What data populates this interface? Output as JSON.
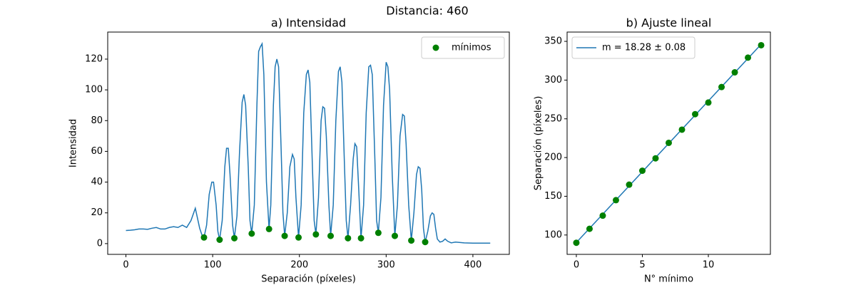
{
  "suptitle": "Distancia: 460",
  "chart_data": [
    {
      "type": "line",
      "title": "a) Intensidad",
      "xlabel": "Separación (píxeles)",
      "ylabel": "Intensidad",
      "xlim": [
        -21,
        442
      ],
      "ylim": [
        -7,
        137.6
      ],
      "xticks": [
        0,
        100,
        200,
        300,
        400
      ],
      "yticks": [
        0,
        20,
        40,
        60,
        80,
        100,
        120
      ],
      "legend": "upper right",
      "series": [
        {
          "type": "line",
          "color": "#1f77b4",
          "x": [
            0,
            5,
            10,
            15,
            20,
            25,
            30,
            35,
            40,
            45,
            50,
            55,
            60,
            65,
            70,
            75,
            80,
            85,
            88,
            90,
            93,
            96,
            99,
            101,
            104,
            106,
            108,
            111,
            114,
            116,
            118,
            120,
            123,
            125,
            128,
            131,
            134,
            136,
            138,
            141,
            143,
            145,
            148,
            151,
            153,
            155,
            157,
            159,
            162,
            165,
            167,
            170,
            172,
            174,
            176,
            179,
            181,
            183,
            186,
            189,
            192,
            194,
            196,
            199,
            202,
            205,
            208,
            210,
            212,
            215,
            217,
            219,
            222,
            225,
            227,
            229,
            231,
            234,
            236,
            239,
            242,
            245,
            247,
            249,
            252,
            254,
            256,
            259,
            262,
            264,
            266,
            268,
            271,
            274,
            277,
            280,
            282,
            284,
            287,
            289,
            291,
            294,
            297,
            300,
            302,
            304,
            307,
            310,
            313,
            316,
            319,
            321,
            323,
            326,
            329,
            332,
            335,
            337,
            339,
            341,
            343,
            345,
            348,
            351,
            353,
            355,
            357,
            359,
            362,
            365,
            368,
            371,
            375,
            380,
            390,
            400,
            410,
            420
          ],
          "values": [
            8.5,
            8.7,
            9,
            9.5,
            9.5,
            9.3,
            10,
            10.5,
            9.5,
            9.5,
            10.5,
            11,
            10.5,
            12,
            10.5,
            15,
            23,
            10,
            5,
            4,
            12,
            32,
            40,
            40,
            25,
            8,
            2.5,
            15,
            50,
            62,
            62,
            45,
            12,
            3.5,
            18,
            60,
            92,
            97,
            90,
            50,
            15,
            6.5,
            25,
            90,
            125,
            128,
            130,
            110,
            40,
            9.5,
            25,
            90,
            115,
            120,
            115,
            60,
            20,
            5,
            20,
            50,
            58,
            55,
            30,
            4,
            25,
            85,
            110,
            113,
            105,
            50,
            15,
            6,
            30,
            80,
            89,
            88,
            70,
            25,
            5,
            25,
            80,
            112,
            115,
            105,
            50,
            15,
            3.5,
            25,
            55,
            65,
            63,
            40,
            3.5,
            25,
            85,
            115,
            116,
            110,
            55,
            15,
            7,
            30,
            90,
            118,
            115,
            100,
            45,
            5,
            25,
            70,
            84,
            83,
            65,
            25,
            2,
            20,
            45,
            50,
            49,
            35,
            10,
            1,
            8,
            18,
            20,
            19,
            10,
            3,
            1,
            1.5,
            3,
            1.5,
            0.5,
            1,
            0.5,
            0.3,
            0.3,
            0.3
          ]
        },
        {
          "type": "scatter",
          "name": "mínimos",
          "color": "green",
          "x": [
            90,
            108,
            125,
            145,
            165,
            183,
            199,
            219,
            236,
            256,
            271,
            291,
            310,
            329,
            345
          ],
          "values": [
            4,
            2.5,
            3.5,
            6.5,
            9.5,
            5,
            4,
            6,
            5,
            3.5,
            3.5,
            7,
            5,
            2,
            1
          ]
        }
      ]
    },
    {
      "type": "line",
      "title": "b) Ajuste lineal",
      "xlabel": "N° mínimo",
      "ylabel": "Separación (píxeles)",
      "xlim": [
        -0.7,
        14.7
      ],
      "ylim": [
        75,
        362
      ],
      "xticks": [
        0,
        5,
        10
      ],
      "yticks": [
        100,
        150,
        200,
        250,
        300,
        350
      ],
      "legend": "upper left",
      "series": [
        {
          "type": "line",
          "name": "m = 18.28 ± 0.08",
          "color": "#1f77b4",
          "x": [
            0,
            14
          ],
          "values": [
            90.3,
            346.2
          ]
        },
        {
          "type": "scatter",
          "color": "green",
          "x": [
            0,
            1,
            2,
            3,
            4,
            5,
            6,
            7,
            8,
            9,
            10,
            11,
            12,
            13,
            14
          ],
          "values": [
            90,
            108,
            125,
            145,
            165,
            183,
            199,
            219,
            236,
            256,
            271,
            291,
            310,
            329,
            345
          ]
        }
      ]
    }
  ]
}
